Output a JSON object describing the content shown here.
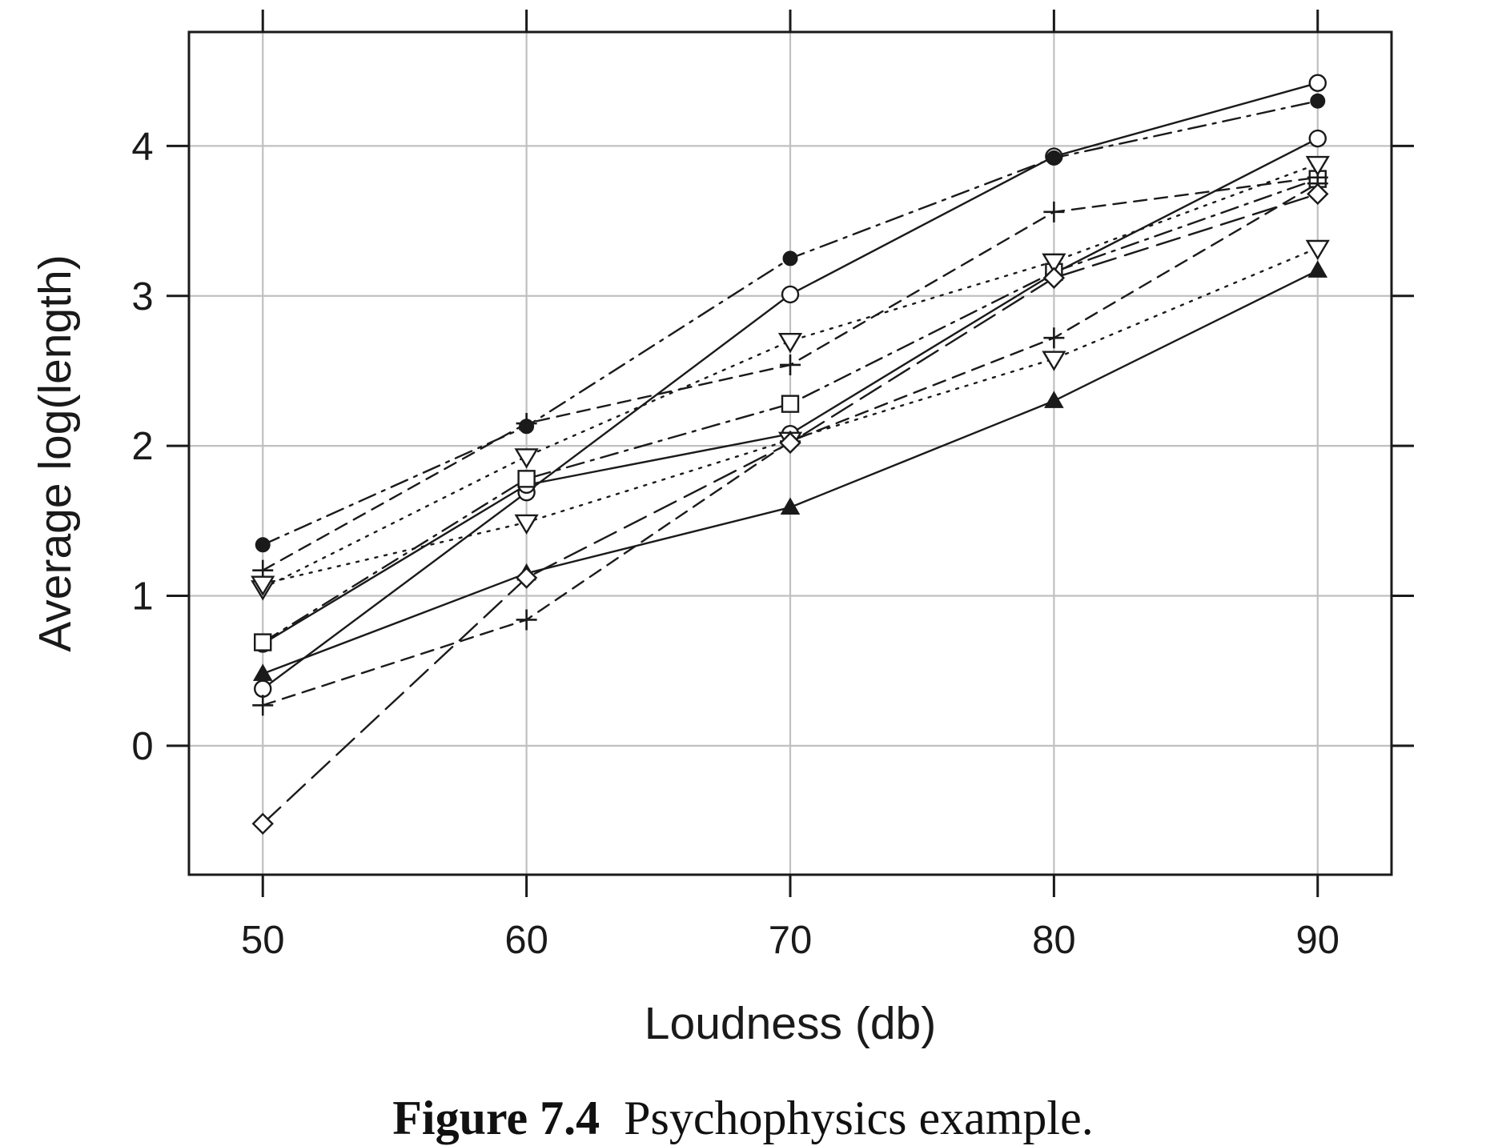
{
  "caption": {
    "label": "Figure 7.4",
    "text": "Psychophysics example."
  },
  "chart_data": {
    "type": "line",
    "title": "",
    "xlabel": "Loudness (db)",
    "ylabel": "Average log(length)",
    "x": [
      50,
      60,
      70,
      80,
      90
    ],
    "xticks": [
      50,
      60,
      70,
      80,
      90
    ],
    "yticks": [
      0,
      1,
      2,
      3,
      4
    ],
    "xlim": [
      47.2,
      92.8
    ],
    "ylim": [
      -0.86,
      4.76
    ],
    "grid": true,
    "legend": "none",
    "colors": {
      "grid": "#c0c0c0",
      "ink": "#1a1a1a",
      "background": "#ffffff"
    },
    "series": [
      {
        "marker": "open-circle",
        "line": "solid",
        "values": [
          0.38,
          1.69,
          3.01,
          3.93,
          4.42
        ]
      },
      {
        "marker": "filled-circle",
        "line": "dashdot",
        "values": [
          1.34,
          2.13,
          3.25,
          3.92,
          4.3
        ]
      },
      {
        "marker": "filled-triangle",
        "line": "solid",
        "values": [
          0.48,
          1.15,
          1.59,
          2.3,
          3.17
        ]
      },
      {
        "marker": "open-circle",
        "line": "solid",
        "values": [
          0.68,
          1.74,
          2.08,
          3.15,
          4.05
        ]
      },
      {
        "marker": "open-square",
        "line": "dashdot",
        "values": [
          0.69,
          1.78,
          2.28,
          3.16,
          3.78
        ]
      },
      {
        "marker": "plus",
        "line": "dashed",
        "values": [
          1.17,
          2.15,
          2.54,
          3.56,
          3.79
        ]
      },
      {
        "marker": "open-triangle-down",
        "line": "dotted",
        "values": [
          1.05,
          1.93,
          2.7,
          3.23,
          3.88
        ]
      },
      {
        "marker": "open-triangle-down",
        "line": "dotted",
        "values": [
          1.08,
          1.49,
          2.04,
          2.58,
          3.32
        ]
      },
      {
        "marker": "plus",
        "line": "dashed",
        "values": [
          0.27,
          0.84,
          2.03,
          2.72,
          3.75
        ]
      },
      {
        "marker": "open-diamond",
        "line": "longdash",
        "values": [
          -0.52,
          1.12,
          2.02,
          3.12,
          3.68
        ]
      }
    ]
  }
}
